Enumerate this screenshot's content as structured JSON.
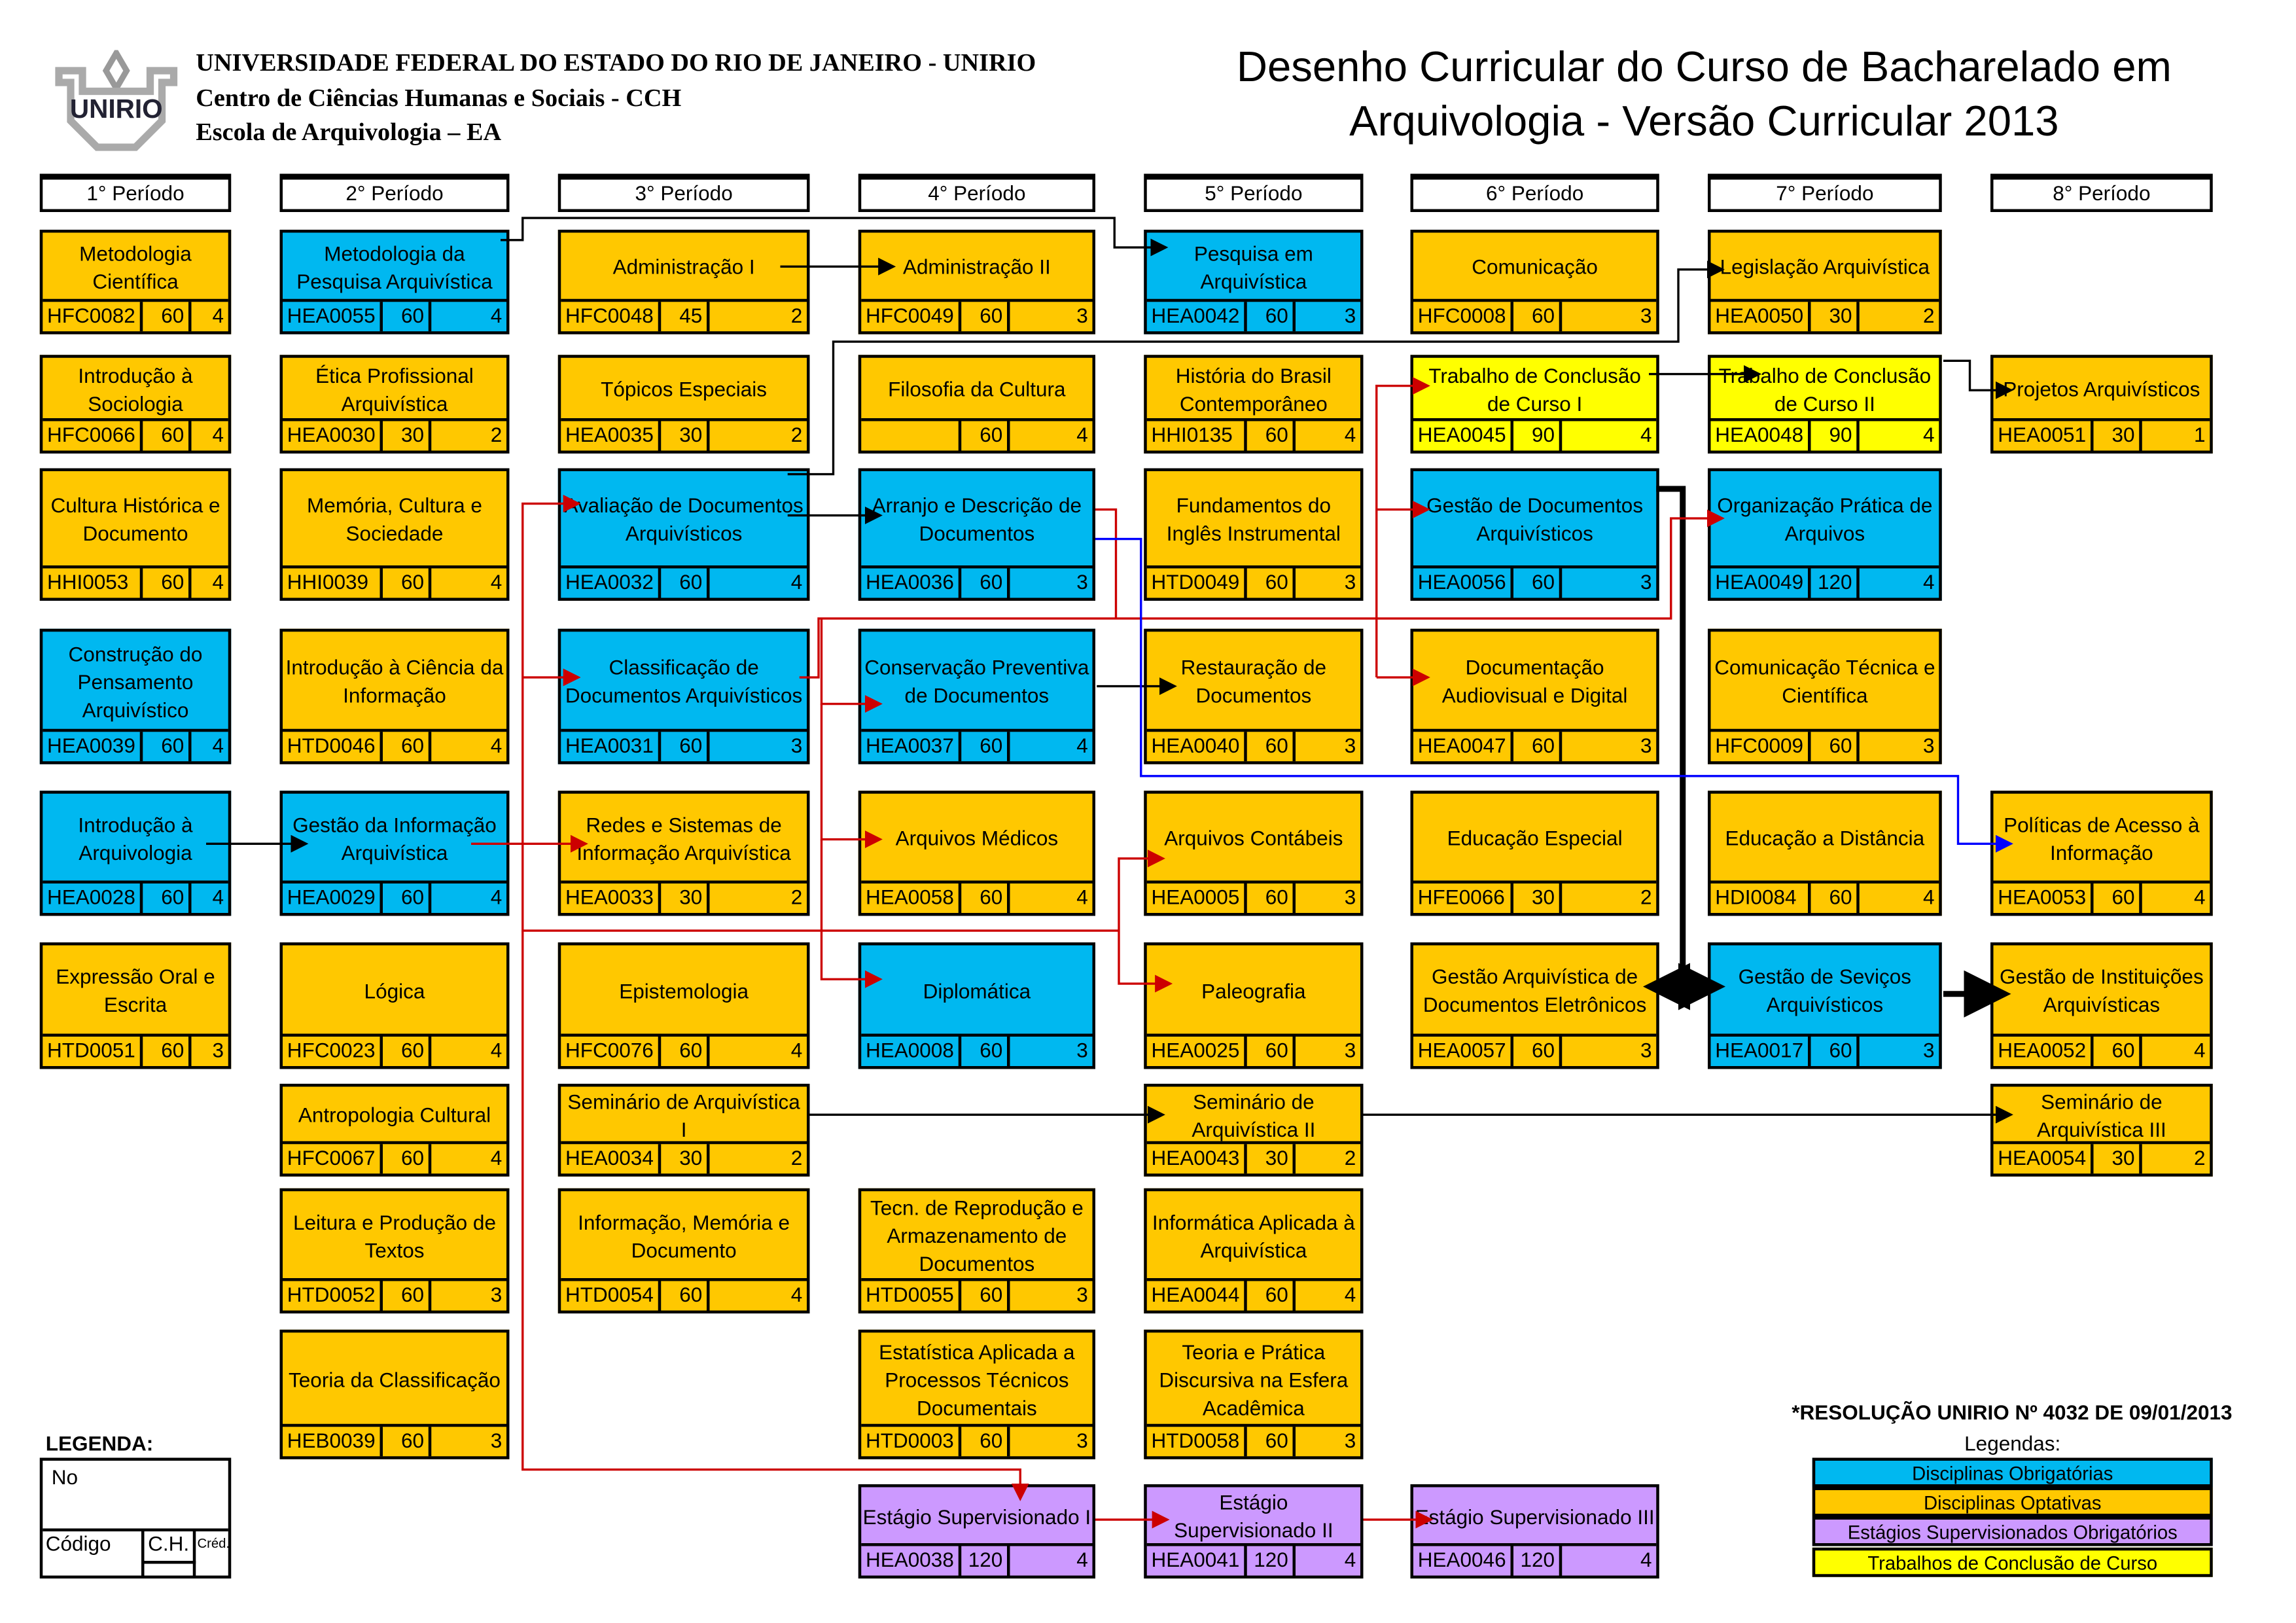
{
  "header": {
    "logo_text": "UNIRIO",
    "university": "UNIVERSIDADE FEDERAL DO ESTADO DO RIO DE JANEIRO - UNIRIO",
    "center": "Centro de Ciências Humanas e Sociais - CCH",
    "school": "Escola de Arquivologia – EA",
    "title_line1": "Desenho Curricular do Curso  de Bacharelado em",
    "title_line2": "Arquivologia - Versão Curricular 2013"
  },
  "periods": [
    "1° Período",
    "2° Período",
    "3° Período",
    "4° Período",
    "5° Período",
    "6° Período",
    "7° Período",
    "8° Período"
  ],
  "colors": {
    "obrigatoria": "#00B8F0",
    "optativa": "#FFC800",
    "estagio": "#CC99FF",
    "tcc": "#FFFF00"
  },
  "courses": [
    {
      "period": 1,
      "type": "opt",
      "title": "Metodologia Científica",
      "code": "HFC0082",
      "ch": "60",
      "cr": "4"
    },
    {
      "period": 1,
      "type": "opt",
      "title": "Introdução à Sociologia",
      "code": "HFC0066",
      "ch": "60",
      "cr": "4"
    },
    {
      "period": 1,
      "type": "opt",
      "title": "Cultura Histórica e Documento",
      "code": "HHI0053",
      "ch": "60",
      "cr": "4"
    },
    {
      "period": 1,
      "type": "obr",
      "title": "Construção do Pensamento Arquivístico",
      "code": "HEA0039",
      "ch": "60",
      "cr": "4"
    },
    {
      "period": 1,
      "type": "obr",
      "title": "Introdução à Arquivologia",
      "code": "HEA0028",
      "ch": "60",
      "cr": "4"
    },
    {
      "period": 1,
      "type": "opt",
      "title": "Expressão Oral e Escrita",
      "code": "HTD0051",
      "ch": "60",
      "cr": "3"
    },
    {
      "period": 2,
      "type": "obr",
      "title": "Metodologia da Pesquisa Arquivística",
      "code": "HEA0055",
      "ch": "60",
      "cr": "4"
    },
    {
      "period": 2,
      "type": "opt",
      "title": "Ética Profissional Arquivística",
      "code": "HEA0030",
      "ch": "30",
      "cr": "2"
    },
    {
      "period": 2,
      "type": "opt",
      "title": "Memória, Cultura e Sociedade",
      "code": "HHI0039",
      "ch": "60",
      "cr": "4"
    },
    {
      "period": 2,
      "type": "opt",
      "title": "Introdução à Ciência da Informação",
      "code": "HTD0046",
      "ch": "60",
      "cr": "4"
    },
    {
      "period": 2,
      "type": "obr",
      "title": "Gestão da Informação Arquivística",
      "code": "HEA0029",
      "ch": "60",
      "cr": "4"
    },
    {
      "period": 2,
      "type": "opt",
      "title": "Lógica",
      "code": "HFC0023",
      "ch": "60",
      "cr": "4"
    },
    {
      "period": 2,
      "type": "opt",
      "title": "Antropologia Cultural",
      "code": "HFC0067",
      "ch": "60",
      "cr": "4"
    },
    {
      "period": 2,
      "type": "opt",
      "title": "Leitura e Produção de Textos",
      "code": "HTD0052",
      "ch": "60",
      "cr": "3"
    },
    {
      "period": 2,
      "type": "opt",
      "title": "Teoria da Classificação",
      "code": "HEB0039",
      "ch": "60",
      "cr": "3"
    },
    {
      "period": 3,
      "type": "opt",
      "title": "Administração I",
      "code": "HFC0048",
      "ch": "45",
      "cr": "2"
    },
    {
      "period": 3,
      "type": "opt",
      "title": "Tópicos Especiais",
      "code": "HEA0035",
      "ch": "30",
      "cr": "2"
    },
    {
      "period": 3,
      "type": "obr",
      "title": "Avaliação de Documentos Arquivísticos",
      "code": "HEA0032",
      "ch": "60",
      "cr": "4"
    },
    {
      "period": 3,
      "type": "obr",
      "title": "Classificação de Documentos Arquivísticos",
      "code": "HEA0031",
      "ch": "60",
      "cr": "3"
    },
    {
      "period": 3,
      "type": "opt",
      "title": "Redes e Sistemas de Informação Arquivística",
      "code": "HEA0033",
      "ch": "30",
      "cr": "2"
    },
    {
      "period": 3,
      "type": "opt",
      "title": "Epistemologia",
      "code": "HFC0076",
      "ch": "60",
      "cr": "4"
    },
    {
      "period": 3,
      "type": "opt",
      "title": "Seminário de Arquivística I",
      "code": "HEA0034",
      "ch": "30",
      "cr": "2"
    },
    {
      "period": 3,
      "type": "opt",
      "title": "Informação, Memória e Documento",
      "code": "HTD0054",
      "ch": "60",
      "cr": "4"
    },
    {
      "period": 4,
      "type": "opt",
      "title": "Administração II",
      "code": "HFC0049",
      "ch": "60",
      "cr": "3"
    },
    {
      "period": 4,
      "type": "opt",
      "title": "Filosofia da Cultura",
      "code": "",
      "ch": "60",
      "cr": "4"
    },
    {
      "period": 4,
      "type": "obr",
      "title": "Arranjo e Descrição de Documentos",
      "code": "HEA0036",
      "ch": "60",
      "cr": "3"
    },
    {
      "period": 4,
      "type": "obr",
      "title": "Conservação Preventiva de Documentos",
      "code": "HEA0037",
      "ch": "60",
      "cr": "4"
    },
    {
      "period": 4,
      "type": "opt",
      "title": "Arquivos Médicos",
      "code": "HEA0058",
      "ch": "60",
      "cr": "4"
    },
    {
      "period": 4,
      "type": "obr",
      "title": "Diplomática",
      "code": "HEA0008",
      "ch": "60",
      "cr": "3"
    },
    {
      "period": 4,
      "type": "opt",
      "title": "Tecn. de Reprodução e Armazenamento de Documentos",
      "code": "HTD0055",
      "ch": "60",
      "cr": "3"
    },
    {
      "period": 4,
      "type": "opt",
      "title": "Estatística Aplicada a Processos Técnicos Documentais",
      "code": "HTD0003",
      "ch": "60",
      "cr": "3"
    },
    {
      "period": 4,
      "type": "est",
      "title": "Estágio Supervisionado I",
      "code": "HEA0038",
      "ch": "120",
      "cr": "4"
    },
    {
      "period": 5,
      "type": "obr",
      "title": "Pesquisa em Arquivística",
      "code": "HEA0042",
      "ch": "60",
      "cr": "3"
    },
    {
      "period": 5,
      "type": "opt",
      "title": "História do Brasil Contemporâneo",
      "code": "HHI0135",
      "ch": "60",
      "cr": "4"
    },
    {
      "period": 5,
      "type": "opt",
      "title": "Fundamentos do Inglês Instrumental",
      "code": "HTD0049",
      "ch": "60",
      "cr": "3"
    },
    {
      "period": 5,
      "type": "opt",
      "title": "Restauração de Documentos",
      "code": "HEA0040",
      "ch": "60",
      "cr": "3"
    },
    {
      "period": 5,
      "type": "opt",
      "title": "Arquivos Contábeis",
      "code": "HEA0005",
      "ch": "60",
      "cr": "3"
    },
    {
      "period": 5,
      "type": "opt",
      "title": "Paleografia",
      "code": "HEA0025",
      "ch": "60",
      "cr": "3"
    },
    {
      "period": 5,
      "type": "opt",
      "title": "Seminário de Arquivística II",
      "code": "HEA0043",
      "ch": "30",
      "cr": "2"
    },
    {
      "period": 5,
      "type": "opt",
      "title": "Informática Aplicada à Arquivística",
      "code": "HEA0044",
      "ch": "60",
      "cr": "4"
    },
    {
      "period": 5,
      "type": "opt",
      "title": "Teoria e Prática Discursiva na Esfera Acadêmica",
      "code": "HTD0058",
      "ch": "60",
      "cr": "3"
    },
    {
      "period": 5,
      "type": "est",
      "title": "Estágio Supervisionado II",
      "code": "HEA0041",
      "ch": "120",
      "cr": "4"
    },
    {
      "period": 6,
      "type": "opt",
      "title": "Comunicação",
      "code": "HFC0008",
      "ch": "60",
      "cr": "3"
    },
    {
      "period": 6,
      "type": "tcc",
      "title": "Trabalho de Conclusão de Curso I",
      "code": "HEA0045",
      "ch": "90",
      "cr": "4"
    },
    {
      "period": 6,
      "type": "obr",
      "title": "Gestão de Documentos Arquivísticos",
      "code": "HEA0056",
      "ch": "60",
      "cr": "3"
    },
    {
      "period": 6,
      "type": "opt",
      "title": "Documentação Audiovisual e Digital",
      "code": "HEA0047",
      "ch": "60",
      "cr": "3"
    },
    {
      "period": 6,
      "type": "opt",
      "title": "Educação Especial",
      "code": "HFE0066",
      "ch": "30",
      "cr": "2"
    },
    {
      "period": 6,
      "type": "opt",
      "title": "Gestão Arquivística de Documentos Eletrônicos",
      "code": "HEA0057",
      "ch": "60",
      "cr": "3"
    },
    {
      "period": 6,
      "type": "est",
      "title": "Estágio Supervisionado III",
      "code": "HEA0046",
      "ch": "120",
      "cr": "4"
    },
    {
      "period": 7,
      "type": "opt",
      "title": "Legislação Arquivística",
      "code": "HEA0050",
      "ch": "30",
      "cr": "2"
    },
    {
      "period": 7,
      "type": "tcc",
      "title": "Trabalho de Conclusão de Curso II",
      "code": "HEA0048",
      "ch": "90",
      "cr": "4"
    },
    {
      "period": 7,
      "type": "obr",
      "title": "Organização Prática de Arquivos",
      "code": "HEA0049",
      "ch": "120",
      "cr": "4"
    },
    {
      "period": 7,
      "type": "opt",
      "title": "Comunicação Técnica e Científica",
      "code": "HFC0009",
      "ch": "60",
      "cr": "3"
    },
    {
      "period": 7,
      "type": "opt",
      "title": "Educação a Distância",
      "code": "HDI0084",
      "ch": "60",
      "cr": "4"
    },
    {
      "period": 7,
      "type": "obr",
      "title": "Gestão de Seviços Arquivísticos",
      "code": "HEA0017",
      "ch": "60",
      "cr": "3"
    },
    {
      "period": 8,
      "type": "opt",
      "title": "Projetos Arquivísticos",
      "code": "HEA0051",
      "ch": "30",
      "cr": "1"
    },
    {
      "period": 8,
      "type": "opt",
      "title": "Políticas de Acesso à Informação",
      "code": "HEA0053",
      "ch": "60",
      "cr": "4"
    },
    {
      "period": 8,
      "type": "opt",
      "title": "Gestão de Instituições Arquivísticas",
      "code": "HEA0052",
      "ch": "60",
      "cr": "4"
    },
    {
      "period": 8,
      "type": "opt",
      "title": "Seminário de Arquivística III",
      "code": "HEA0054",
      "ch": "30",
      "cr": "2"
    }
  ],
  "legend_key": {
    "title": "LEGENDA:",
    "name": "No",
    "code": "Código",
    "ch": "C.H.",
    "cr": "Créd."
  },
  "legend": {
    "resolution": "*RESOLUÇÃO UNIRIO Nº 4032 DE 09/01/2013",
    "title": "Legendas:",
    "items": [
      "Disciplinas Obrigatórias",
      "Disciplinas Optativas",
      "Estágios Supervisionados Obrigatórios",
      "Trabalhos de Conclusão de Curso"
    ]
  }
}
